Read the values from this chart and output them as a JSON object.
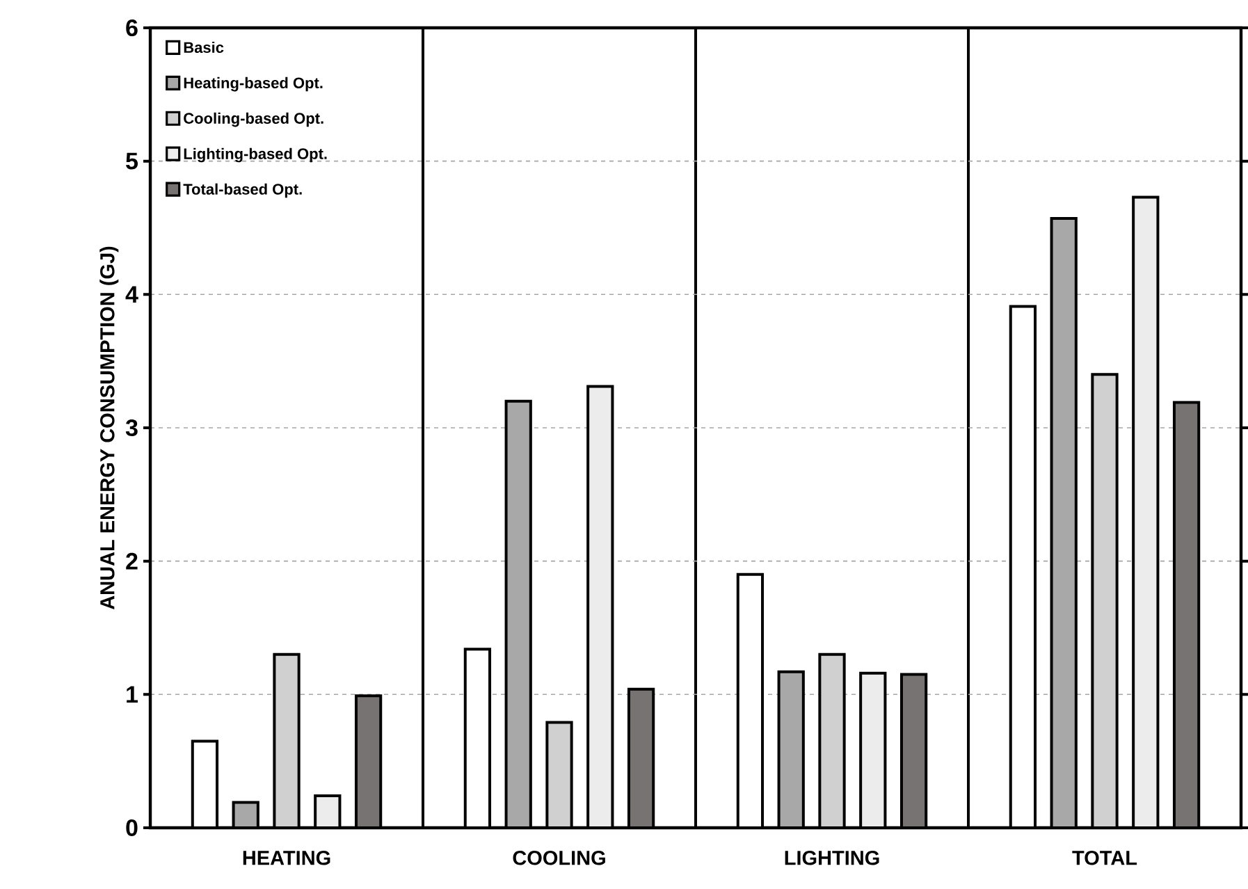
{
  "chart_data": {
    "type": "bar",
    "ylabel": "ANUAL ENERGY CONSUMPTION (GJ)",
    "categories": [
      "HEATING",
      "COOLING",
      "LIGHTING",
      "TOTAL"
    ],
    "series": [
      {
        "name": "Basic",
        "color": "#ffffff",
        "values": [
          0.65,
          1.34,
          1.9,
          3.91
        ]
      },
      {
        "name": "Heating-based Opt.",
        "color": "#a8a8a8",
        "values": [
          0.19,
          3.2,
          1.17,
          4.57
        ]
      },
      {
        "name": "Cooling-based Opt.",
        "color": "#d0d0d0",
        "values": [
          1.3,
          0.79,
          1.3,
          3.4
        ]
      },
      {
        "name": "Lighting-based Opt.",
        "color": "#ececec",
        "values": [
          0.24,
          3.31,
          1.16,
          4.73
        ]
      },
      {
        "name": "Total-based Opt.",
        "color": "#777373",
        "values": [
          0.99,
          1.04,
          1.15,
          3.19
        ]
      }
    ],
    "ylim": [
      0,
      6
    ],
    "yticks": [
      0,
      1,
      2,
      3,
      4,
      5,
      6
    ],
    "grid": "y",
    "legend": "top left"
  }
}
